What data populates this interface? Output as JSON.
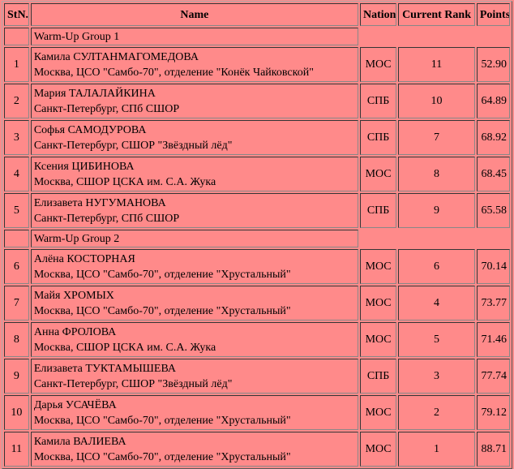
{
  "table": {
    "header": [
      "StN.",
      "Name",
      "Nation",
      "Current Rank",
      "Points"
    ],
    "groups": [
      {
        "title": "Warm-Up Group 1",
        "rows": [
          {
            "stn": 1,
            "name": "Камила СУЛТАНМАГОМЕДОВА",
            "club": "Москва, ЦСО \"Самбо-70\", отделение \"Конёк Чайковской\"",
            "nation": "МОС",
            "rank": 11,
            "points": "52.90"
          },
          {
            "stn": 2,
            "name": "Мария ТАЛАЛАЙКИНА",
            "club": "Санкт-Петербург, СПб СШОР",
            "nation": "СПБ",
            "rank": 10,
            "points": "64.89"
          },
          {
            "stn": 3,
            "name": "Софья САМОДУРОВА",
            "club": "Санкт-Петербург, СШОР \"Звёздный лёд\"",
            "nation": "СПБ",
            "rank": 7,
            "points": "68.92"
          },
          {
            "stn": 4,
            "name": "Ксения ЦИБИНОВА",
            "club": "Москва, СШОР ЦСКА им. С.А. Жука",
            "nation": "МОС",
            "rank": 8,
            "points": "68.45"
          },
          {
            "stn": 5,
            "name": "Елизавета НУГУМАНОВА",
            "club": "Санкт-Петербург, СПб СШОР",
            "nation": "СПБ",
            "rank": 9,
            "points": "65.58"
          }
        ]
      },
      {
        "title": "Warm-Up Group 2",
        "rows": [
          {
            "stn": 6,
            "name": "Алёна КОСТОРНАЯ",
            "club": "Москва, ЦСО \"Самбо-70\", отделение \"Хрустальный\"",
            "nation": "МОС",
            "rank": 6,
            "points": "70.14"
          },
          {
            "stn": 7,
            "name": "Майя ХРОМЫХ",
            "club": "Москва, ЦСО \"Самбо-70\", отделение \"Хрустальный\"",
            "nation": "МОС",
            "rank": 4,
            "points": "73.77"
          },
          {
            "stn": 8,
            "name": "Анна ФРОЛОВА",
            "club": "Москва, СШОР ЦСКА им. С.А. Жука",
            "nation": "МОС",
            "rank": 5,
            "points": "71.46"
          },
          {
            "stn": 9,
            "name": "Елизавета ТУКТАМЫШЕВА",
            "club": "Санкт-Петербург, СШОР \"Звёздный лёд\"",
            "nation": "СПБ",
            "rank": 3,
            "points": "77.74"
          },
          {
            "stn": 10,
            "name": "Дарья УСАЧЁВА",
            "club": "Москва, ЦСО \"Самбо-70\", отделение \"Хрустальный\"",
            "nation": "МОС",
            "rank": 2,
            "points": "79.12"
          },
          {
            "stn": 11,
            "name": "Камила ВАЛИЕВА",
            "club": "Москва, ЦСО \"Самбо-70\", отделение \"Хрустальный\"",
            "nation": "МОС",
            "rank": 1,
            "points": "88.71"
          }
        ]
      }
    ]
  }
}
